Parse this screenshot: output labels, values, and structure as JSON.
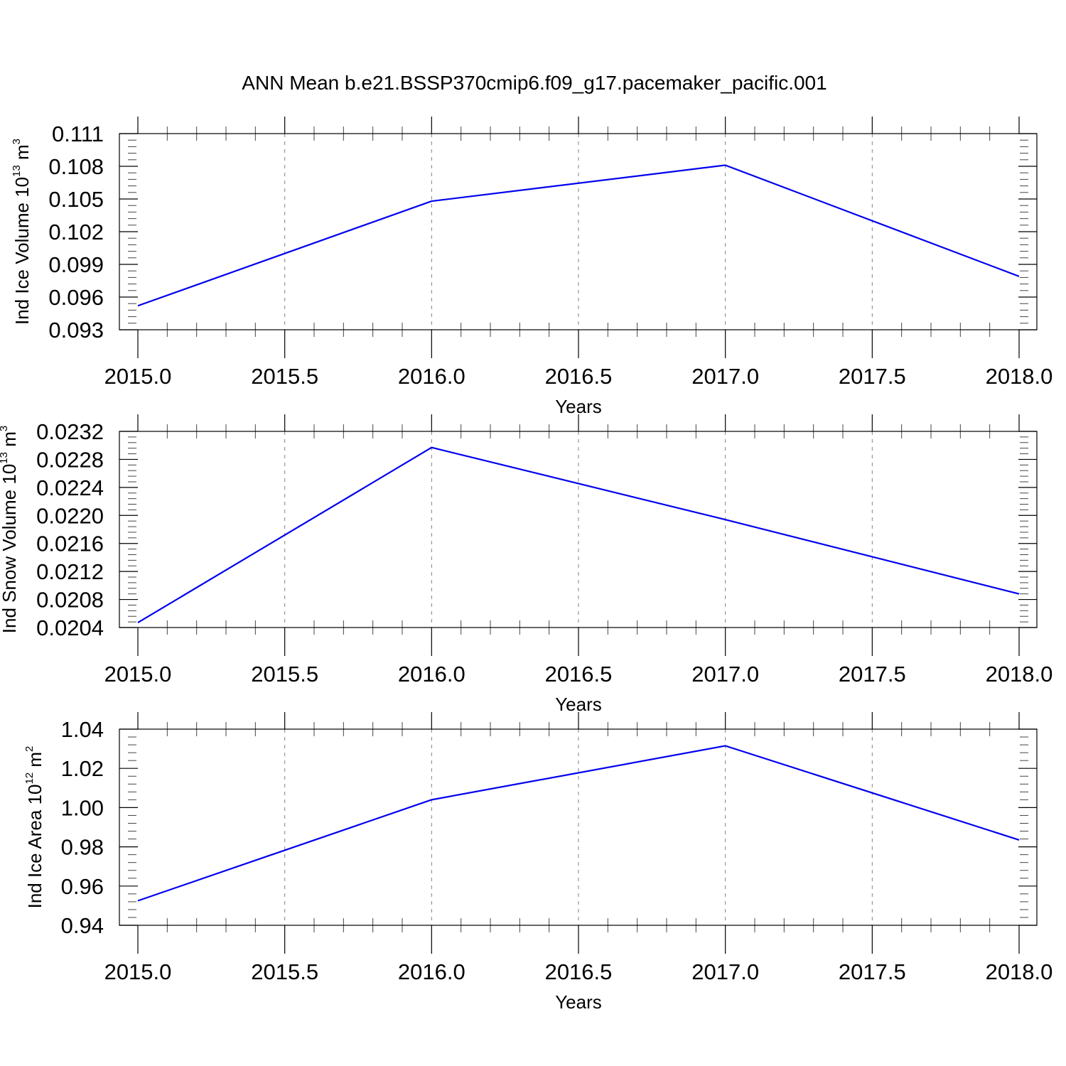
{
  "figure": {
    "title": "ANN Mean b.e21.BSSP370cmip6.f09_g17.pacemaker_pacific.001"
  },
  "chart_data": [
    {
      "type": "line",
      "ylabel": {
        "text": "Ind Ice Volume 10",
        "exponent": "13",
        "unit": " m",
        "unit_exponent": "3"
      },
      "xlabel": "Years",
      "xlim": [
        2015.0,
        2018.0
      ],
      "ylim": [
        0.093,
        0.111
      ],
      "x_ticks": [
        "2015.0",
        "2015.5",
        "2016.0",
        "2016.5",
        "2017.0",
        "2017.5",
        "2018.0"
      ],
      "y_ticks": [
        "0.093",
        "0.096",
        "0.099",
        "0.102",
        "0.105",
        "0.108",
        "0.111"
      ],
      "x": [
        2015.0,
        2016.0,
        2017.0,
        2018.0
      ],
      "y": [
        0.0952,
        0.1048,
        0.1081,
        0.0979
      ],
      "color": "#0000ee",
      "grid": "vertical-dashed"
    },
    {
      "type": "line",
      "ylabel": {
        "text": "Ind Snow Volume 10",
        "exponent": "13",
        "unit": " m",
        "unit_exponent": "3"
      },
      "xlabel": "Years",
      "xlim": [
        2015.0,
        2018.0
      ],
      "ylim": [
        0.0204,
        0.0232
      ],
      "x_ticks": [
        "2015.0",
        "2015.5",
        "2016.0",
        "2016.5",
        "2017.0",
        "2017.5",
        "2018.0"
      ],
      "y_ticks": [
        "0.0204",
        "0.0208",
        "0.0212",
        "0.0216",
        "0.0220",
        "0.0224",
        "0.0228",
        "0.0232"
      ],
      "x": [
        2015.0,
        2016.0,
        2017.0,
        2018.0
      ],
      "y": [
        0.02047,
        0.02297,
        0.02194,
        0.02088
      ],
      "color": "#0000ee",
      "grid": "vertical-dashed"
    },
    {
      "type": "line",
      "ylabel": {
        "text": "Ind Ice Area 10",
        "exponent": "12",
        "unit": " m",
        "unit_exponent": "2"
      },
      "xlabel": "Years",
      "xlim": [
        2015.0,
        2018.0
      ],
      "ylim": [
        0.94,
        1.04
      ],
      "x_ticks": [
        "2015.0",
        "2015.5",
        "2016.0",
        "2016.5",
        "2017.0",
        "2017.5",
        "2018.0"
      ],
      "y_ticks": [
        "0.94",
        "0.96",
        "0.98",
        "1.00",
        "1.02",
        "1.04"
      ],
      "x": [
        2015.0,
        2016.0,
        2017.0,
        2018.0
      ],
      "y": [
        0.9525,
        1.004,
        1.0315,
        0.9835
      ],
      "color": "#0000ee",
      "grid": "vertical-dashed"
    }
  ]
}
